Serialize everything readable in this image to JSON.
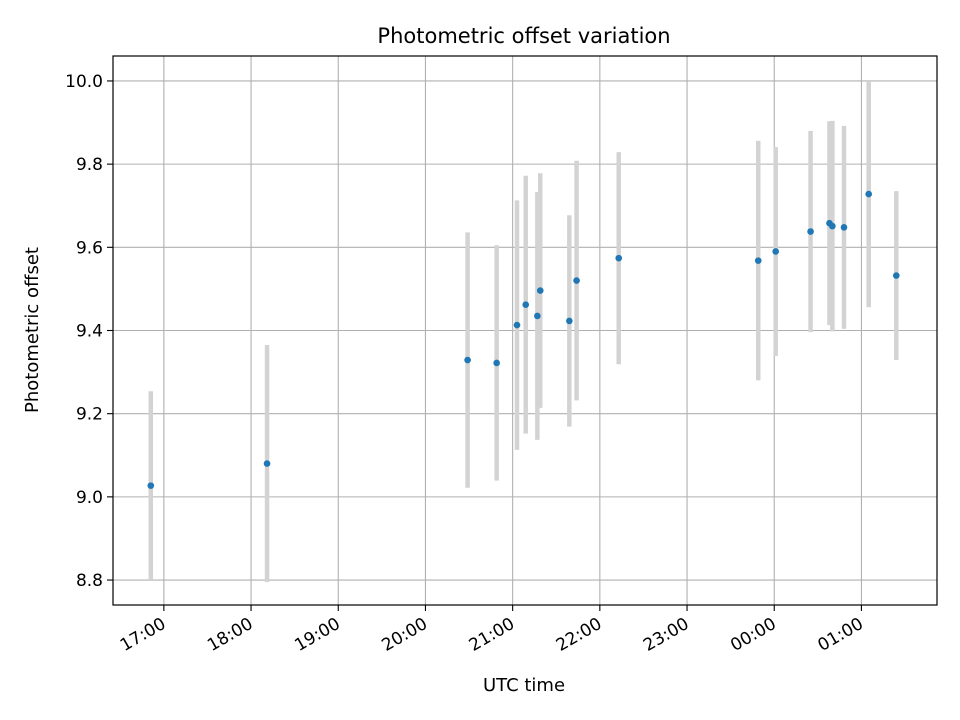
{
  "chart_data": {
    "type": "scatter",
    "title": "Photometric offset variation",
    "xlabel": "UTC time",
    "ylabel": "Photometric offset",
    "x_unit": "hours (UTC, continuing past midnight)",
    "xlim": [
      "16:25",
      "01:52"
    ],
    "ylim": [
      8.74,
      10.06
    ],
    "grid": true,
    "x_ticks": [
      {
        "value": "17:00",
        "label": "17:00"
      },
      {
        "value": "18:00",
        "label": "18:00"
      },
      {
        "value": "19:00",
        "label": "19:00"
      },
      {
        "value": "20:00",
        "label": "20:00"
      },
      {
        "value": "21:00",
        "label": "21:00"
      },
      {
        "value": "22:00",
        "label": "22:00"
      },
      {
        "value": "23:00",
        "label": "23:00"
      },
      {
        "value": "00:00",
        "label": "00:00"
      },
      {
        "value": "01:00",
        "label": "01:00"
      }
    ],
    "y_ticks": [
      {
        "value": 8.8,
        "label": "8.8"
      },
      {
        "value": 9.0,
        "label": "9.0"
      },
      {
        "value": 9.2,
        "label": "9.2"
      },
      {
        "value": 9.4,
        "label": "9.4"
      },
      {
        "value": 9.6,
        "label": "9.6"
      },
      {
        "value": 9.8,
        "label": "9.8"
      },
      {
        "value": 10.0,
        "label": "10.0"
      }
    ],
    "point_color": "#1f77b4",
    "errorbar_color": "#d3d3d3",
    "grid_color": "#b0b0b0",
    "points": [
      {
        "x": "16:51",
        "y": 9.027,
        "err": 0.227
      },
      {
        "x": "18:11",
        "y": 9.08,
        "err": 0.285
      },
      {
        "x": "20:29",
        "y": 9.329,
        "err": 0.307
      },
      {
        "x": "20:49",
        "y": 9.322,
        "err": 0.283
      },
      {
        "x": "21:03",
        "y": 9.413,
        "err": 0.3
      },
      {
        "x": "21:09",
        "y": 9.462,
        "err": 0.31
      },
      {
        "x": "21:17",
        "y": 9.435,
        "err": 0.298
      },
      {
        "x": "21:19",
        "y": 9.496,
        "err": 0.282
      },
      {
        "x": "21:39",
        "y": 9.423,
        "err": 0.254
      },
      {
        "x": "21:44",
        "y": 9.52,
        "err": 0.288
      },
      {
        "x": "22:13",
        "y": 9.574,
        "err": 0.255
      },
      {
        "x": "23:49",
        "y": 9.568,
        "err": 0.288
      },
      {
        "x": "00:01",
        "y": 9.59,
        "err": 0.251
      },
      {
        "x": "00:25",
        "y": 9.638,
        "err": 0.242
      },
      {
        "x": "00:38",
        "y": 9.658,
        "err": 0.245
      },
      {
        "x": "00:40",
        "y": 9.651,
        "err": 0.253
      },
      {
        "x": "00:48",
        "y": 9.648,
        "err": 0.244
      },
      {
        "x": "01:05",
        "y": 9.728,
        "err": 0.272
      },
      {
        "x": "01:24",
        "y": 9.532,
        "err": 0.203
      }
    ]
  }
}
